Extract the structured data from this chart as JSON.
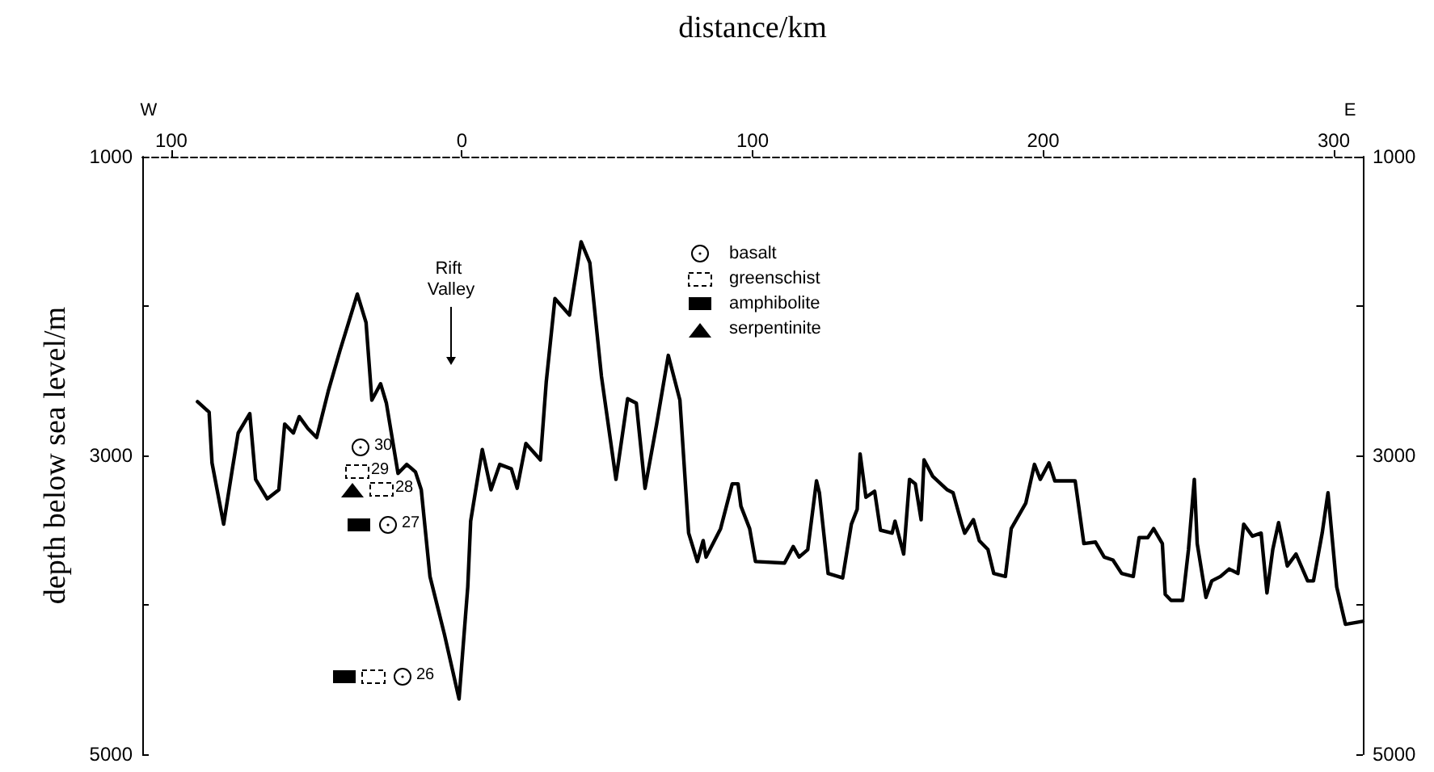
{
  "chart_data": {
    "type": "line",
    "xlabel": "distance/km",
    "ylabel": "depth below sea level/m",
    "x": [
      -91,
      -87,
      -86,
      -82,
      -79,
      -77,
      -73,
      -71,
      -67,
      -63,
      -61,
      -58,
      -56,
      -53,
      -50,
      -46,
      -42,
      -39,
      -36,
      -33,
      -31,
      -28,
      -26,
      -22,
      -19,
      -16,
      -14,
      -11,
      -6,
      -1,
      2,
      3,
      7,
      10,
      13,
      17,
      19,
      22,
      27,
      29,
      32,
      37,
      41,
      44,
      48,
      53,
      57,
      60,
      63,
      67,
      71,
      75,
      78,
      81,
      83,
      84,
      89,
      93,
      95,
      96,
      99,
      101,
      111,
      114,
      116,
      119,
      122,
      123,
      126,
      131,
      134,
      136,
      137,
      139,
      142,
      144,
      148,
      149,
      152,
      154,
      156,
      158,
      159,
      162,
      167,
      169,
      172,
      173,
      176,
      178,
      181,
      183,
      187,
      189,
      194,
      197,
      199,
      202,
      204,
      211,
      214,
      218,
      221,
      224,
      227,
      231,
      233,
      236,
      238,
      241,
      242,
      244,
      248,
      250,
      252,
      253,
      256,
      258,
      261,
      264,
      267,
      269,
      272,
      275,
      277,
      279,
      281,
      284,
      287,
      291,
      293,
      296,
      298,
      301,
      304,
      310
    ],
    "values": [
      2640,
      2710,
      3050,
      3460,
      3090,
      2850,
      2720,
      3160,
      3290,
      3230,
      2790,
      2850,
      2740,
      2820,
      2880,
      2570,
      2300,
      2110,
      1920,
      2110,
      2630,
      2520,
      2650,
      3120,
      3060,
      3110,
      3230,
      3810,
      4200,
      4630,
      3880,
      3440,
      2960,
      3230,
      3060,
      3090,
      3220,
      2920,
      3030,
      2510,
      1950,
      2060,
      1570,
      1710,
      2470,
      3160,
      2620,
      2650,
      3220,
      2790,
      2330,
      2630,
      3520,
      3710,
      3570,
      3680,
      3490,
      3190,
      3190,
      3340,
      3490,
      3710,
      3720,
      3610,
      3680,
      3630,
      3170,
      3250,
      3790,
      3820,
      3460,
      3360,
      2990,
      3280,
      3240,
      3500,
      3520,
      3440,
      3660,
      3160,
      3190,
      3430,
      3030,
      3140,
      3230,
      3250,
      3460,
      3520,
      3430,
      3570,
      3630,
      3790,
      3810,
      3490,
      3320,
      3060,
      3160,
      3050,
      3170,
      3170,
      3590,
      3580,
      3680,
      3700,
      3790,
      3810,
      3550,
      3550,
      3490,
      3590,
      3930,
      3970,
      3970,
      3630,
      3160,
      3590,
      3950,
      3840,
      3810,
      3760,
      3790,
      3460,
      3540,
      3520,
      3920,
      3630,
      3450,
      3740,
      3660,
      3840,
      3840,
      3520,
      3250,
      3880,
      4130,
      4110
    ],
    "color": "#000000",
    "marker": "none",
    "line_style": "solid",
    "grid": false,
    "xlim": [
      -110,
      310
    ],
    "xticks": [
      {
        "value": -100,
        "label": "100"
      },
      0,
      100,
      200,
      300
    ],
    "ylim": [
      5000,
      1000
    ],
    "yticks": [
      1000,
      {
        "value": 2000,
        "label": null
      },
      3000,
      {
        "value": 4000,
        "label": null
      },
      5000
    ],
    "y2lim": [
      5000,
      1000
    ],
    "y2ticks": [
      1000,
      {
        "value": 2000,
        "label": null
      },
      3000,
      {
        "value": 4000,
        "label": null
      },
      5000
    ],
    "annotations": [
      "W",
      "E",
      "basalt",
      "greenschist",
      "amphibolite",
      "serpentinite",
      "Rift Valley",
      "30",
      "29",
      "28",
      "27",
      "26"
    ]
  }
}
